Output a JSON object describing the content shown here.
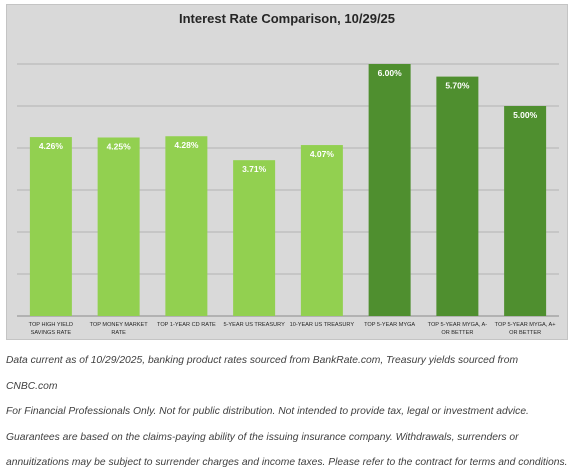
{
  "chart_data": {
    "type": "bar",
    "title": "Interest Rate Comparison, 10/29/25",
    "xlabel": "",
    "ylabel": "",
    "ylim": [
      0,
      6.5
    ],
    "grid": true,
    "categories": [
      "TOP HIGH YIELD SAVINGS RATE",
      "TOP MONEY MARKET RATE",
      "TOP 1-YEAR CD RATE",
      "5-YEAR US TREASURY",
      "10-YEAR US TREASURY",
      "TOP 5-YEAR MYGA",
      "TOP 5-YEAR MYGA, A- OR BETTER",
      "TOP 5-YEAR MYGA, A+ OR BETTER"
    ],
    "values": [
      4.26,
      4.25,
      4.28,
      3.71,
      4.07,
      6.0,
      5.7,
      5.0
    ],
    "data_labels": [
      "4.26%",
      "4.25%",
      "4.28%",
      "3.71%",
      "4.07%",
      "6.00%",
      "5.70%",
      "5.00%"
    ],
    "category_label_lines": [
      [
        "TOP HIGH YIELD",
        "SAVINGS RATE"
      ],
      [
        "TOP MONEY MARKET",
        "RATE"
      ],
      [
        "TOP 1-YEAR CD RATE"
      ],
      [
        "5-YEAR US TREASURY"
      ],
      [
        "10-YEAR US TREASURY"
      ],
      [
        "TOP 5-YEAR MYGA"
      ],
      [
        "TOP 5-YEAR MYGA, A-",
        "OR BETTER"
      ],
      [
        "TOP 5-YEAR MYGA, A+",
        "OR BETTER"
      ]
    ],
    "bar_colors": [
      "#92d050",
      "#92d050",
      "#92d050",
      "#92d050",
      "#92d050",
      "#4f8f2f",
      "#4f8f2f",
      "#4f8f2f"
    ]
  },
  "footnotes": [
    "Data current as of 10/29/2025, banking product rates sourced from BankRate.com, Treasury yields sourced from CNBC.com",
    "For Financial Professionals Only. Not for public distribution. Not intended to provide tax, legal or investment advice. Guarantees are based on the claims-paying ability of the issuing insurance company. Withdrawals, surrenders or annuitizations may be subject to surrender charges and income taxes. Please refer to the contract for terms and conditions."
  ]
}
